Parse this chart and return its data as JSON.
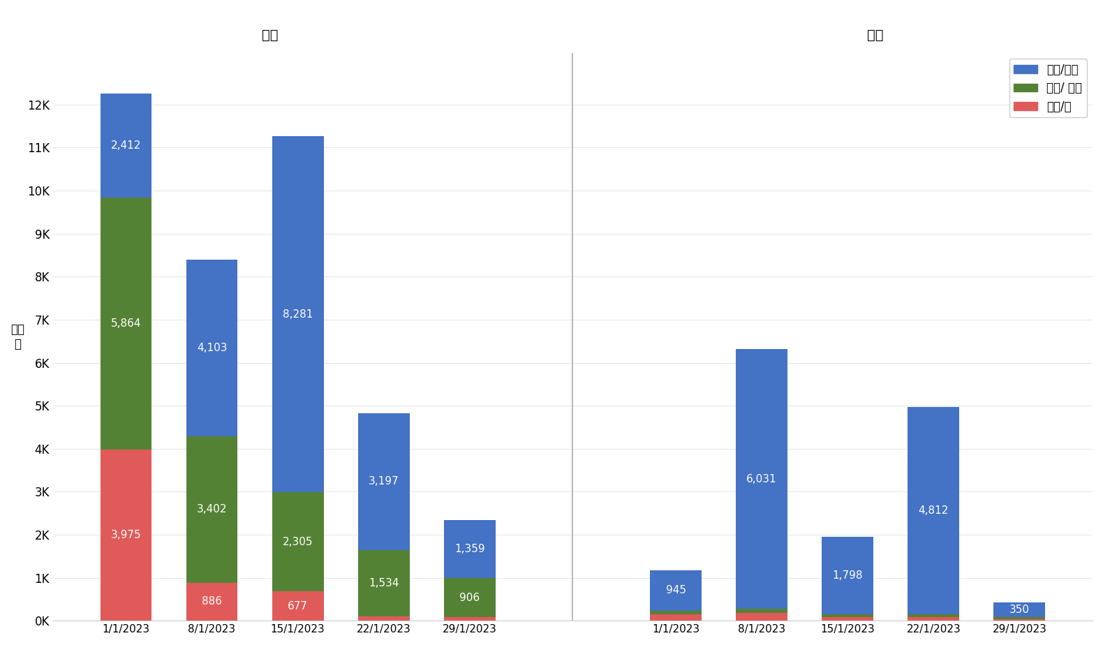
{
  "hk_dates": [
    "1/1/2023",
    "8/1/2023",
    "15/1/2023",
    "22/1/2023",
    "29/1/2023"
  ],
  "hk_blue": [
    2412,
    4103,
    8281,
    3197,
    1359
  ],
  "hk_green": [
    5864,
    3402,
    2305,
    1534,
    906
  ],
  "hk_red": [
    3975,
    886,
    677,
    100,
    80
  ],
  "mc_dates": [
    "1/1/2023",
    "8/1/2023",
    "15/1/2023",
    "22/1/2023",
    "29/1/2023"
  ],
  "mc_blue": [
    945,
    6031,
    1798,
    4812,
    350
  ],
  "mc_green": [
    80,
    100,
    60,
    70,
    50
  ],
  "mc_red": [
    150,
    180,
    90,
    80,
    30
  ],
  "color_blue": "#4472c4",
  "color_green": "#548235",
  "color_red": "#e05a5a",
  "legend_labels": [
    "購物/美食",
    "留學/ 讀研",
    "疫苗/藥"
  ],
  "ylabel": "帖數\n量",
  "hk_title": "香港",
  "mc_title": "澳門",
  "background_color": "#ffffff",
  "divider_color": "#aaaaaa",
  "yticks": [
    0,
    1000,
    2000,
    3000,
    4000,
    5000,
    6000,
    7000,
    8000,
    9000,
    10000,
    11000,
    12000
  ],
  "ytick_labels": [
    "0K",
    "1K",
    "2K",
    "3K",
    "4K",
    "5K",
    "6K",
    "7K",
    "8K",
    "9K",
    "10K",
    "11K",
    "12K"
  ]
}
